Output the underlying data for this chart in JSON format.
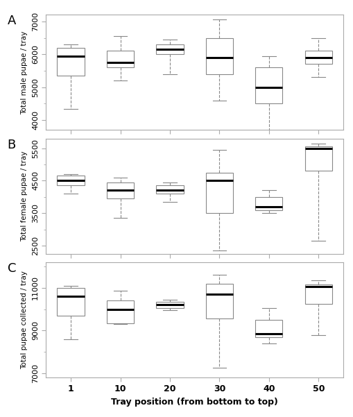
{
  "categories": [
    "1",
    "10",
    "20",
    "30",
    "40",
    "50"
  ],
  "panel_labels": [
    "A",
    "B",
    "C"
  ],
  "panel_ylabels": [
    "Total male pupae / tray",
    "Total female pupae / tray",
    "Total pupae collected / tray"
  ],
  "xlabel": "Tray position (from bottom to top)",
  "panels": {
    "A": {
      "ylim": [
        3700,
        7200
      ],
      "yticks": [
        4000,
        5000,
        6000,
        7000
      ],
      "boxes": [
        {
          "q1": 5350,
          "median": 5950,
          "q3": 6200,
          "whislo": 4350,
          "whishi": 6300
        },
        {
          "q1": 5600,
          "median": 5750,
          "q3": 6100,
          "whislo": 5200,
          "whishi": 6550
        },
        {
          "q1": 6000,
          "median": 6150,
          "q3": 6300,
          "whislo": 5400,
          "whishi": 6450
        },
        {
          "q1": 5400,
          "median": 5900,
          "q3": 6500,
          "whislo": 4600,
          "whishi": 7050
        },
        {
          "q1": 4500,
          "median": 5000,
          "q3": 5600,
          "whislo": 3650,
          "whishi": 5950
        },
        {
          "q1": 5700,
          "median": 5900,
          "q3": 6100,
          "whislo": 5300,
          "whishi": 6500
        }
      ]
    },
    "B": {
      "ylim": [
        2250,
        5800
      ],
      "yticks": [
        2500,
        3500,
        4500,
        5500
      ],
      "boxes": [
        {
          "q1": 4350,
          "median": 4500,
          "q3": 4650,
          "whislo": 4100,
          "whishi": 4700
        },
        {
          "q1": 3950,
          "median": 4200,
          "q3": 4450,
          "whislo": 3350,
          "whishi": 4600
        },
        {
          "q1": 4100,
          "median": 4200,
          "q3": 4350,
          "whislo": 3850,
          "whishi": 4450
        },
        {
          "q1": 3500,
          "median": 4500,
          "q3": 4750,
          "whislo": 2350,
          "whishi": 5450
        },
        {
          "q1": 3600,
          "median": 3700,
          "q3": 4000,
          "whislo": 3500,
          "whishi": 4200
        },
        {
          "q1": 4800,
          "median": 5500,
          "q3": 5550,
          "whislo": 2650,
          "whishi": 5650
        }
      ]
    },
    "C": {
      "ylim": [
        6800,
        12200
      ],
      "yticks": [
        7000,
        9000,
        11000
      ],
      "boxes": [
        {
          "q1": 9700,
          "median": 10600,
          "q3": 11000,
          "whislo": 8600,
          "whishi": 11100
        },
        {
          "q1": 9350,
          "median": 10000,
          "q3": 10400,
          "whislo": 9300,
          "whishi": 10850
        },
        {
          "q1": 10050,
          "median": 10200,
          "q3": 10350,
          "whislo": 9950,
          "whishi": 10450
        },
        {
          "q1": 9550,
          "median": 10700,
          "q3": 11200,
          "whislo": 7250,
          "whishi": 11600
        },
        {
          "q1": 8700,
          "median": 8850,
          "q3": 9500,
          "whislo": 8400,
          "whishi": 10050
        },
        {
          "q1": 10250,
          "median": 11050,
          "q3": 11150,
          "whislo": 8800,
          "whishi": 11350
        }
      ]
    }
  },
  "box_facecolor": "white",
  "box_edgecolor": "#888888",
  "median_color": "black",
  "whisker_color": "#888888",
  "cap_color": "#888888",
  "linewidth": 0.8,
  "medianlinewidth": 2.2,
  "whisker_linestyle": "--",
  "figsize": [
    5.1,
    6.01
  ],
  "dpi": 100
}
